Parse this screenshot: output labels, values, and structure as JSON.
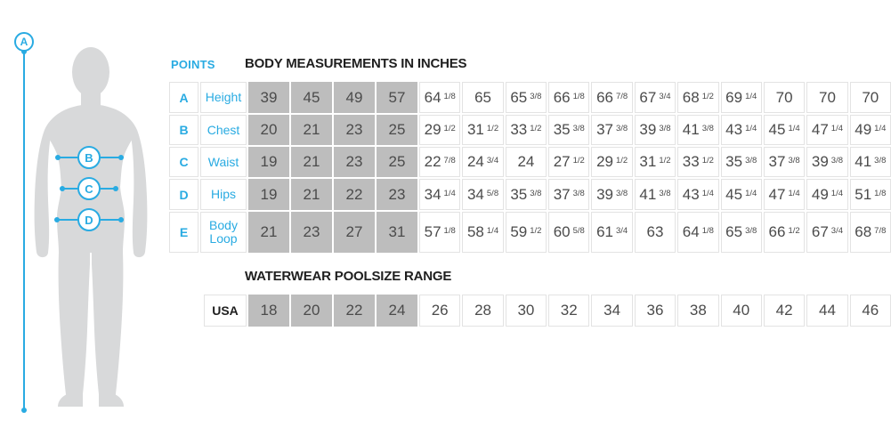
{
  "colors": {
    "accent": "#29abe2",
    "gray_cell": "#bdbdbd",
    "cell_text": "#4b4b4b",
    "grid_line": "#e3e3e3",
    "heading_text": "#1f1f1f",
    "silhouette": "#d8d9da"
  },
  "figure": {
    "point_a": "A",
    "point_b": "B",
    "point_c": "C",
    "point_d": "D"
  },
  "headers": {
    "points": "POINTS",
    "measurements": "BODY MEASUREMENTS IN INCHES",
    "poolsize": "WATERWEAR POOLSIZE RANGE"
  },
  "measurements_table": {
    "rows": [
      {
        "point": "A",
        "label": "Height",
        "gray": [
          "39",
          "45",
          "49",
          "57"
        ],
        "values": [
          "64 1/8",
          "65",
          "65 3/8",
          "66 1/8",
          "66 7/8",
          "67 3/4",
          "68 1/2",
          "69 1/4",
          "70",
          "70",
          "70"
        ]
      },
      {
        "point": "B",
        "label": "Chest",
        "gray": [
          "20",
          "21",
          "23",
          "25"
        ],
        "values": [
          "29 1/2",
          "31 1/2",
          "33 1/2",
          "35 3/8",
          "37 3/8",
          "39 3/8",
          "41 3/8",
          "43 1/4",
          "45 1/4",
          "47 1/4",
          "49 1/4"
        ]
      },
      {
        "point": "C",
        "label": "Waist",
        "gray": [
          "19",
          "21",
          "23",
          "25"
        ],
        "values": [
          "22 7/8",
          "24 3/4",
          "24",
          "27 1/2",
          "29 1/2",
          "31 1/2",
          "33 1/2",
          "35 3/8",
          "37 3/8",
          "39 3/8",
          "41 3/8"
        ]
      },
      {
        "point": "D",
        "label": "Hips",
        "gray": [
          "19",
          "21",
          "22",
          "23"
        ],
        "values": [
          "34 1/4",
          "34 5/8",
          "35 3/8",
          "37 3/8",
          "39 3/8",
          "41 3/8",
          "43 1/4",
          "45 1/4",
          "47 1/4",
          "49 1/4",
          "51 1/8"
        ]
      },
      {
        "point": "E",
        "label": "Body Loop",
        "gray": [
          "21",
          "23",
          "27",
          "31"
        ],
        "values": [
          "57 1/8",
          "58 1/4",
          "59 1/2",
          "60 5/8",
          "61 3/4",
          "63",
          "64 1/8",
          "65 3/8",
          "66 1/2",
          "67 3/4",
          "68 7/8"
        ]
      }
    ]
  },
  "poolsize_table": {
    "label": "USA",
    "gray": [
      "18",
      "20",
      "22",
      "24"
    ],
    "values": [
      "26",
      "28",
      "30",
      "32",
      "34",
      "36",
      "38",
      "40",
      "42",
      "44",
      "46"
    ]
  }
}
